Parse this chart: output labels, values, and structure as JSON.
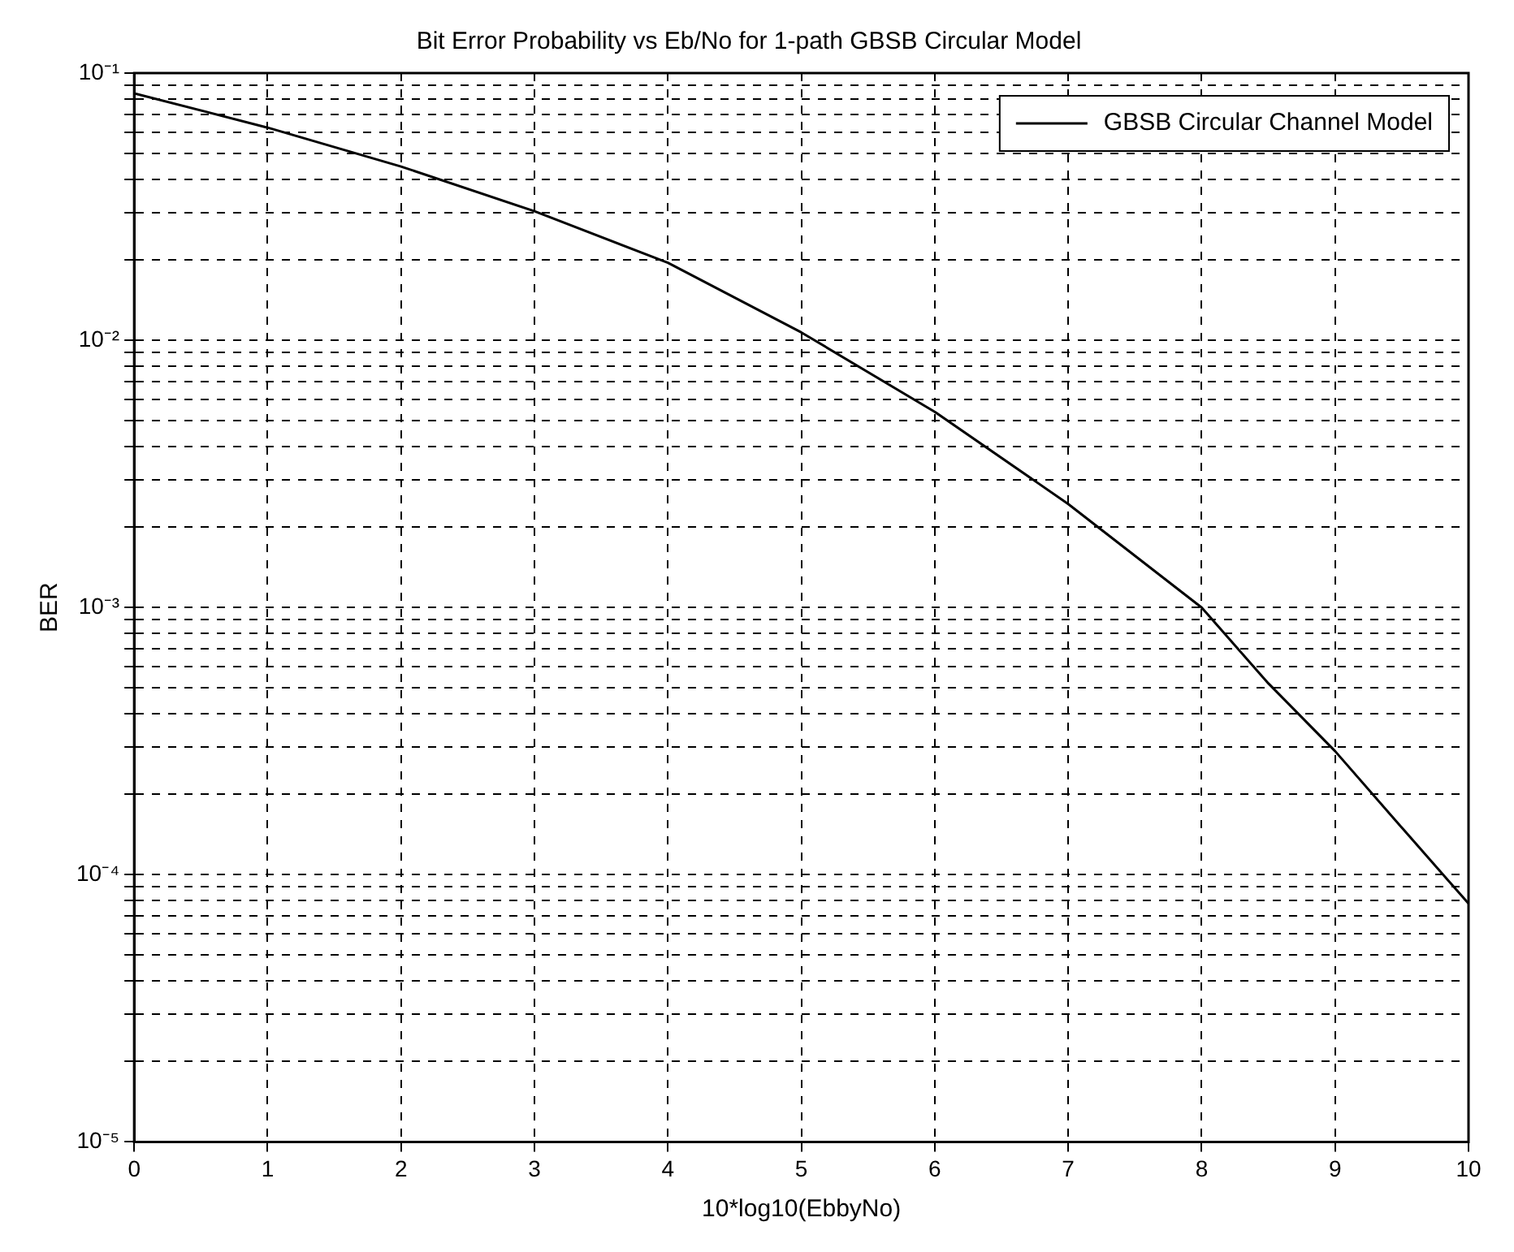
{
  "chart_data": {
    "type": "line",
    "title": "Bit Error Probability vs Eb/No for 1-path GBSB Circular Model",
    "xlabel": "10*log10(EbbyNo)",
    "ylabel": "BER",
    "x": [
      0,
      1,
      2,
      3,
      4,
      5,
      6,
      7,
      8,
      8.5,
      9,
      9.5,
      10
    ],
    "series": [
      {
        "name": "GBSB Circular Channel Model",
        "color": "#000000",
        "values": [
          0.084,
          0.0625,
          0.0447,
          0.0304,
          0.0195,
          0.0107,
          0.0054,
          0.00244,
          0.001,
          0.00052,
          0.00029,
          0.00015,
          7.8e-05
        ]
      }
    ],
    "log": "y",
    "xlim": [
      0,
      10
    ],
    "xticks": [
      0,
      1,
      2,
      3,
      4,
      5,
      6,
      7,
      8,
      9,
      10
    ],
    "ylim": [
      1e-05,
      0.1
    ],
    "yticks": [
      {
        "value": 1e-05,
        "label": "10⁻⁵"
      },
      {
        "value": 2e-05,
        "label": null
      },
      {
        "value": 3e-05,
        "label": null
      },
      {
        "value": 4e-05,
        "label": null
      },
      {
        "value": 5e-05,
        "label": null
      },
      {
        "value": 6e-05,
        "label": null
      },
      {
        "value": 7e-05,
        "label": null
      },
      {
        "value": 8e-05,
        "label": null
      },
      {
        "value": 9e-05,
        "label": null
      },
      {
        "value": 0.0001,
        "label": "10⁻⁴"
      },
      {
        "value": 0.0002,
        "label": null
      },
      {
        "value": 0.0003,
        "label": null
      },
      {
        "value": 0.0004,
        "label": null
      },
      {
        "value": 0.0005,
        "label": null
      },
      {
        "value": 0.0006,
        "label": null
      },
      {
        "value": 0.0007,
        "label": null
      },
      {
        "value": 0.0008,
        "label": null
      },
      {
        "value": 0.0009,
        "label": null
      },
      {
        "value": 0.001,
        "label": "10⁻³"
      },
      {
        "value": 0.002,
        "label": null
      },
      {
        "value": 0.003,
        "label": null
      },
      {
        "value": 0.004,
        "label": null
      },
      {
        "value": 0.005,
        "label": null
      },
      {
        "value": 0.006,
        "label": null
      },
      {
        "value": 0.007,
        "label": null
      },
      {
        "value": 0.008,
        "label": null
      },
      {
        "value": 0.009,
        "label": null
      },
      {
        "value": 0.01,
        "label": "10⁻²"
      },
      {
        "value": 0.02,
        "label": null
      },
      {
        "value": 0.03,
        "label": null
      },
      {
        "value": 0.04,
        "label": null
      },
      {
        "value": 0.05,
        "label": null
      },
      {
        "value": 0.06,
        "label": null
      },
      {
        "value": 0.07,
        "label": null
      },
      {
        "value": 0.08,
        "label": null
      },
      {
        "value": 0.09,
        "label": null
      },
      {
        "value": 0.1,
        "label": "10⁻¹"
      }
    ],
    "grid": true,
    "line_style": "solid",
    "marker": "none",
    "legend": "top right"
  }
}
